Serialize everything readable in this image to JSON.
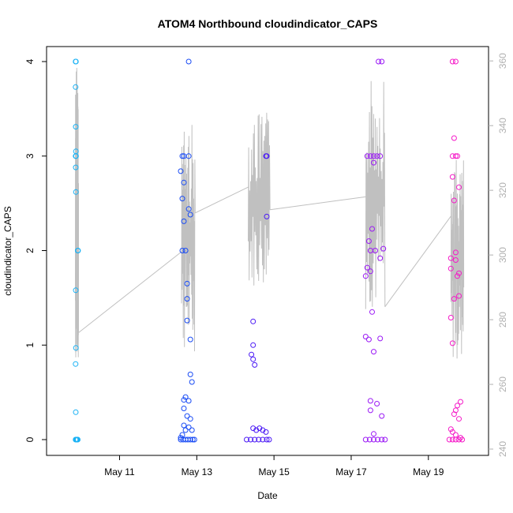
{
  "chart_data": {
    "type": "scatter",
    "title": "ATOM4 Northbound cloudindicator_CAPS",
    "xlabel": "Date",
    "ylabel": "cloudindicator_CAPS",
    "xlim": [
      "2016-05-09 08:00",
      "2016-05-20 08:00"
    ],
    "ylim": [
      0,
      4
    ],
    "x_ticks": [
      "May 11",
      "May 13",
      "May 15",
      "May 17",
      "May 19"
    ],
    "y_ticks": [
      "0",
      "1",
      "2",
      "3",
      "4"
    ],
    "y2lim": [
      240,
      362
    ],
    "y2_ticks": [
      "240",
      "260",
      "280",
      "300",
      "320",
      "340",
      "360"
    ],
    "y2_series_color": "#c0c0c0",
    "point_colors": [
      "#1ab2f5",
      "#1a4cf5",
      "#4b1af5",
      "#9b1af5",
      "#f51ac8"
    ],
    "grid": false,
    "legend": "none",
    "series": [
      {
        "group": 1,
        "color": "#1ab2f5",
        "points": [
          [
            "2016-05-09 20:40",
            4
          ],
          [
            "2016-05-09 20:50",
            4
          ],
          [
            "2016-05-09 20:40",
            3.73
          ],
          [
            "2016-05-09 20:45",
            3.31
          ],
          [
            "2016-05-09 20:50",
            3.05
          ],
          [
            "2016-05-09 20:40",
            3
          ],
          [
            "2016-05-09 20:55",
            3
          ],
          [
            "2016-05-09 20:45",
            2.88
          ],
          [
            "2016-05-09 20:50",
            2.62
          ],
          [
            "2016-05-09 22:00",
            2
          ],
          [
            "2016-05-09 22:10",
            2
          ],
          [
            "2016-05-09 20:45",
            1.58
          ],
          [
            "2016-05-09 20:50",
            0.97
          ],
          [
            "2016-05-09 20:40",
            0.8
          ],
          [
            "2016-05-09 20:45",
            0.29
          ],
          [
            "2016-05-09 20:40",
            0
          ],
          [
            "2016-05-09 21:00",
            0
          ],
          [
            "2016-05-09 21:20",
            0
          ],
          [
            "2016-05-09 21:40",
            0
          ],
          [
            "2016-05-09 22:00",
            0
          ]
        ]
      },
      {
        "group": 2,
        "color": "#1a4cf5",
        "points": [
          [
            "2016-05-12 19:00",
            4
          ],
          [
            "2016-05-12 15:00",
            3
          ],
          [
            "2016-05-12 16:00",
            3
          ],
          [
            "2016-05-12 19:00",
            3
          ],
          [
            "2016-05-12 14:00",
            2.84
          ],
          [
            "2016-05-12 16:00",
            2.72
          ],
          [
            "2016-05-12 15:00",
            2.55
          ],
          [
            "2016-05-12 19:00",
            2.44
          ],
          [
            "2016-05-12 20:00",
            2.38
          ],
          [
            "2016-05-12 16:00",
            2.31
          ],
          [
            "2016-05-12 15:00",
            2
          ],
          [
            "2016-05-12 17:00",
            2
          ],
          [
            "2016-05-12 18:00",
            1.65
          ],
          [
            "2016-05-12 18:00",
            1.49
          ],
          [
            "2016-05-12 18:00",
            1.26
          ],
          [
            "2016-05-12 20:00",
            1.06
          ],
          [
            "2016-05-12 20:00",
            0.69
          ],
          [
            "2016-05-12 21:00",
            0.61
          ],
          [
            "2016-05-12 17:00",
            0.45
          ],
          [
            "2016-05-12 16:00",
            0.42
          ],
          [
            "2016-05-12 19:00",
            0.41
          ],
          [
            "2016-05-12 16:00",
            0.33
          ],
          [
            "2016-05-12 18:00",
            0.25
          ],
          [
            "2016-05-12 20:00",
            0.22
          ],
          [
            "2016-05-12 16:00",
            0.15
          ],
          [
            "2016-05-12 19:00",
            0.13
          ],
          [
            "2016-05-12 17:00",
            0.1
          ],
          [
            "2016-05-12 21:00",
            0.1
          ],
          [
            "2016-05-12 15:00",
            0.05
          ],
          [
            "2016-05-12 14:00",
            0.02
          ],
          [
            "2016-05-12 14:00",
            0
          ],
          [
            "2016-05-12 15:30",
            0
          ],
          [
            "2016-05-12 17:00",
            0
          ],
          [
            "2016-05-12 18:30",
            0
          ],
          [
            "2016-05-12 20:00",
            0
          ],
          [
            "2016-05-12 21:30",
            0
          ],
          [
            "2016-05-12 22:30",
            0
          ]
        ]
      },
      {
        "group": 3,
        "color": "#4b1af5",
        "points": [
          [
            "2016-05-14 19:00",
            3
          ],
          [
            "2016-05-14 19:30",
            3
          ],
          [
            "2016-05-14 19:30",
            2.36
          ],
          [
            "2016-05-14 11:00",
            1.25
          ],
          [
            "2016-05-14 11:00",
            1
          ],
          [
            "2016-05-14 10:00",
            0.9
          ],
          [
            "2016-05-14 11:00",
            0.85
          ],
          [
            "2016-05-14 12:00",
            0.79
          ],
          [
            "2016-05-14 11:00",
            0.12
          ],
          [
            "2016-05-14 15:00",
            0.12
          ],
          [
            "2016-05-14 13:00",
            0.1
          ],
          [
            "2016-05-14 17:00",
            0.1
          ],
          [
            "2016-05-14 19:00",
            0.08
          ],
          [
            "2016-05-14 07:00",
            0
          ],
          [
            "2016-05-14 09:30",
            0
          ],
          [
            "2016-05-14 12:00",
            0
          ],
          [
            "2016-05-14 14:30",
            0
          ],
          [
            "2016-05-14 17:00",
            0
          ],
          [
            "2016-05-14 19:30",
            0
          ],
          [
            "2016-05-14 21:00",
            0
          ]
        ]
      },
      {
        "group": 4,
        "color": "#9b1af5",
        "points": [
          [
            "2016-05-17 17:00",
            4
          ],
          [
            "2016-05-17 19:00",
            4
          ],
          [
            "2016-05-17 10:00",
            3
          ],
          [
            "2016-05-17 12:00",
            3
          ],
          [
            "2016-05-17 14:00",
            3
          ],
          [
            "2016-05-17 16:00",
            3
          ],
          [
            "2016-05-17 18:00",
            3
          ],
          [
            "2016-05-17 14:00",
            2.93
          ],
          [
            "2016-05-17 13:00",
            2.23
          ],
          [
            "2016-05-17 11:00",
            2.1
          ],
          [
            "2016-05-17 12:00",
            2
          ],
          [
            "2016-05-17 15:00",
            2
          ],
          [
            "2016-05-17 20:00",
            2.02
          ],
          [
            "2016-05-17 18:00",
            1.92
          ],
          [
            "2016-05-17 10:00",
            1.82
          ],
          [
            "2016-05-17 12:00",
            1.78
          ],
          [
            "2016-05-17 09:00",
            1.73
          ],
          [
            "2016-05-17 13:00",
            1.35
          ],
          [
            "2016-05-17 09:00",
            1.09
          ],
          [
            "2016-05-17 11:00",
            1.06
          ],
          [
            "2016-05-17 18:00",
            1.07
          ],
          [
            "2016-05-17 14:00",
            0.93
          ],
          [
            "2016-05-17 12:00",
            0.41
          ],
          [
            "2016-05-17 16:00",
            0.38
          ],
          [
            "2016-05-17 12:00",
            0.31
          ],
          [
            "2016-05-17 19:00",
            0.25
          ],
          [
            "2016-05-17 14:00",
            0.06
          ],
          [
            "2016-05-17 09:00",
            0
          ],
          [
            "2016-05-17 11:30",
            0
          ],
          [
            "2016-05-17 14:00",
            0
          ],
          [
            "2016-05-17 16:30",
            0
          ],
          [
            "2016-05-17 19:00",
            0
          ],
          [
            "2016-05-17 21:00",
            0
          ]
        ]
      },
      {
        "group": 5,
        "color": "#f51ac8",
        "points": [
          [
            "2016-05-19 15:00",
            4
          ],
          [
            "2016-05-19 17:00",
            4
          ],
          [
            "2016-05-19 16:00",
            3.19
          ],
          [
            "2016-05-19 15:00",
            3
          ],
          [
            "2016-05-19 17:00",
            3
          ],
          [
            "2016-05-19 18:00",
            3
          ],
          [
            "2016-05-19 15:00",
            2.78
          ],
          [
            "2016-05-19 19:00",
            2.67
          ],
          [
            "2016-05-19 16:00",
            2.53
          ],
          [
            "2016-05-19 17:00",
            1.98
          ],
          [
            "2016-05-19 14:00",
            1.92
          ],
          [
            "2016-05-19 17:00",
            1.9
          ],
          [
            "2016-05-19 14:00",
            1.81
          ],
          [
            "2016-05-19 19:00",
            1.76
          ],
          [
            "2016-05-19 18:00",
            1.73
          ],
          [
            "2016-05-19 19:00",
            1.52
          ],
          [
            "2016-05-19 16:00",
            1.49
          ],
          [
            "2016-05-19 14:00",
            1.29
          ],
          [
            "2016-05-19 15:00",
            1.02
          ],
          [
            "2016-05-19 20:00",
            0.4
          ],
          [
            "2016-05-19 18:00",
            0.36
          ],
          [
            "2016-05-19 17:00",
            0.31
          ],
          [
            "2016-05-19 16:00",
            0.27
          ],
          [
            "2016-05-19 19:00",
            0.22
          ],
          [
            "2016-05-19 14:00",
            0.11
          ],
          [
            "2016-05-19 15:00",
            0.08
          ],
          [
            "2016-05-19 17:00",
            0.05
          ],
          [
            "2016-05-19 20:00",
            0.02
          ],
          [
            "2016-05-19 13:00",
            0
          ],
          [
            "2016-05-19 15:00",
            0
          ],
          [
            "2016-05-19 17:00",
            0
          ],
          [
            "2016-05-19 19:00",
            0
          ],
          [
            "2016-05-19 21:00",
            0
          ]
        ]
      }
    ],
    "secondary_line": {
      "axis": "right",
      "color": "#c0c0c0",
      "segments": [
        {
          "from": "2016-05-09 20:30",
          "to": "2016-05-09 22:30",
          "min": 265,
          "max": 360,
          "end": 276
        },
        {
          "from": "2016-05-12 14:30",
          "to": "2016-05-12 23:00",
          "min": 270,
          "max": 341,
          "end": 313
        },
        {
          "from": "2016-05-14 08:00",
          "to": "2016-05-14 21:30",
          "min": 290,
          "max": 344,
          "end": 314
        },
        {
          "from": "2016-05-17 09:00",
          "to": "2016-05-17 21:00",
          "min": 283,
          "max": 356,
          "end": 284
        },
        {
          "from": "2016-05-19 14:00",
          "to": "2016-05-19 22:00",
          "min": 267,
          "max": 330,
          "end": 290
        }
      ],
      "connectors": [
        {
          "from": [
            "2016-05-09 22:30",
            276
          ],
          "to": [
            "2016-05-12 14:30",
            301
          ]
        },
        {
          "from": [
            "2016-05-12 23:00",
            313
          ],
          "to": [
            "2016-05-14 08:00",
            321
          ]
        },
        {
          "from": [
            "2016-05-14 21:30",
            314
          ],
          "to": [
            "2016-05-17 09:00",
            318
          ]
        },
        {
          "from": [
            "2016-05-17 21:00",
            284
          ],
          "to": [
            "2016-05-19 14:00",
            312
          ]
        }
      ]
    }
  }
}
